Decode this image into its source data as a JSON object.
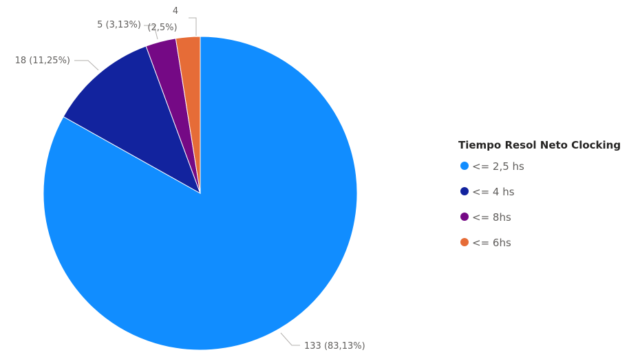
{
  "chart_data": {
    "type": "pie",
    "title": "",
    "legend_title": "Tiempo Resol Neto Clocking",
    "legend_position": "right",
    "slices": [
      {
        "label": "<= 2,5 hs",
        "value": 133,
        "data_label": "133 (83,13%)",
        "color": "#118DFF"
      },
      {
        "label": "<= 4 hs",
        "value": 18,
        "data_label": "18 (11,25%)",
        "color": "#12239E"
      },
      {
        "label": "<= 8hs",
        "value": 5,
        "data_label": "5 (3,13%)",
        "color": "#750985"
      },
      {
        "label": "<= 6hs",
        "value": 4,
        "data_label": "4",
        "data_label_line2": "(2,5%)",
        "color": "#E66C37"
      }
    ]
  }
}
